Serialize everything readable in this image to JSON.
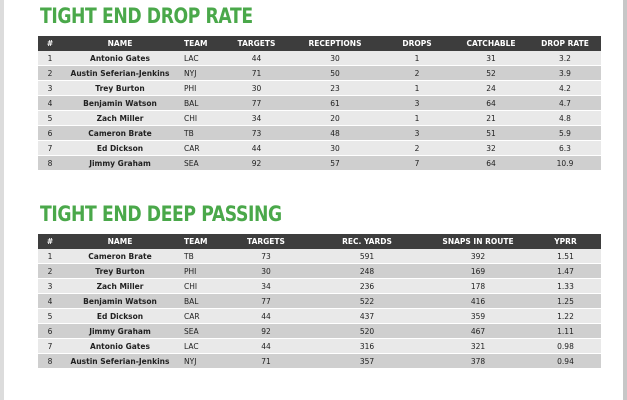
{
  "drop_rate": {
    "title": "TIGHT END DROP RATE",
    "headers": [
      "#",
      "NAME",
      "TEAM",
      "TARGETS",
      "RECEPTIONS",
      "DROPS",
      "CATCHABLE",
      "DROP RATE"
    ],
    "rows": [
      [
        "1",
        "Antonio Gates",
        "LAC",
        "44",
        "30",
        "1",
        "31",
        "3.2"
      ],
      [
        "2",
        "Austin Seferian-Jenkins",
        "NYJ",
        "71",
        "50",
        "2",
        "52",
        "3.9"
      ],
      [
        "3",
        "Trey Burton",
        "PHI",
        "30",
        "23",
        "1",
        "24",
        "4.2"
      ],
      [
        "4",
        "Benjamin Watson",
        "BAL",
        "77",
        "61",
        "3",
        "64",
        "4.7"
      ],
      [
        "5",
        "Zach Miller",
        "CHI",
        "34",
        "20",
        "1",
        "21",
        "4.8"
      ],
      [
        "6",
        "Cameron Brate",
        "TB",
        "73",
        "48",
        "3",
        "51",
        "5.9"
      ],
      [
        "7",
        "Ed Dickson",
        "CAR",
        "44",
        "30",
        "2",
        "32",
        "6.3"
      ],
      [
        "8",
        "Jimmy Graham",
        "SEA",
        "92",
        "57",
        "7",
        "64",
        "10.9"
      ]
    ]
  },
  "deep_passing": {
    "title": "TIGHT END DEEP PASSING",
    "headers": [
      "#",
      "NAME",
      "TEAM",
      "TARGETS",
      "REC. YARDS",
      "SNAPS IN ROUTE",
      "YPRR"
    ],
    "rows": [
      [
        "1",
        "Cameron Brate",
        "TB",
        "73",
        "591",
        "392",
        "1.51"
      ],
      [
        "2",
        "Trey Burton",
        "PHI",
        "30",
        "248",
        "169",
        "1.47"
      ],
      [
        "3",
        "Zach Miller",
        "CHI",
        "34",
        "236",
        "178",
        "1.33"
      ],
      [
        "4",
        "Benjamin Watson",
        "BAL",
        "77",
        "522",
        "416",
        "1.25"
      ],
      [
        "5",
        "Ed Dickson",
        "CAR",
        "44",
        "437",
        "359",
        "1.22"
      ],
      [
        "6",
        "Jimmy Graham",
        "SEA",
        "92",
        "520",
        "467",
        "1.11"
      ],
      [
        "7",
        "Antonio Gates",
        "LAC",
        "44",
        "316",
        "321",
        "0.98"
      ],
      [
        "8",
        "Austin Seferian-Jenkins",
        "NYJ",
        "71",
        "357",
        "378",
        "0.94"
      ]
    ]
  },
  "colors": {
    "title_green": "#4aa84a",
    "header_bg": "#3d3d3d",
    "row_light": "#e9e9e9",
    "row_dark": "#cfcfcf"
  }
}
